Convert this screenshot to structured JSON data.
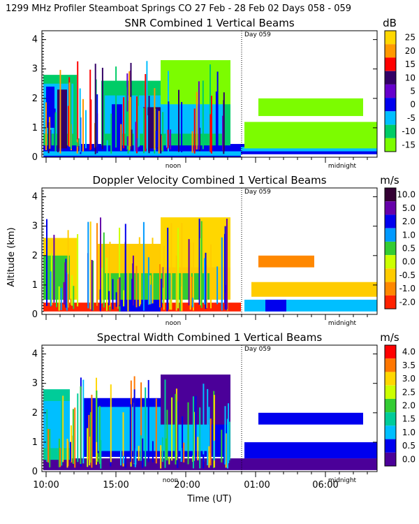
{
  "header": {
    "title": "1299 MHz Profiler   Steamboat Springs CO   27 Feb - 28 Feb 02 Days 058 - 059"
  },
  "colors": {
    "white": "#ffffff",
    "green": "#7cfc00",
    "cyan": "#00bfff",
    "blue": "#0000ee",
    "indigo": "#3a0099",
    "purple": "#4b0082",
    "red": "#ff0000",
    "orange": "#ff8c00",
    "yellow": "#ffd700",
    "darkgray": "#333333"
  },
  "chart_data": [
    {
      "type": "heatmap",
      "title": "SNR Combined 1 Vertical Beams",
      "unit": "dB",
      "day_marker": "Day 059",
      "ylim": [
        0,
        4.3
      ],
      "yticks": [
        "0",
        "1",
        "2",
        "3",
        "4"
      ],
      "x_markers": [
        "noon",
        "midnight"
      ],
      "colorbar": {
        "labels": [
          "25",
          "20",
          "15",
          "10",
          "5",
          "0",
          "-5",
          "-10",
          "-15"
        ],
        "colors": [
          "#ffd700",
          "#ff9900",
          "#ff0000",
          "#330066",
          "#6600cc",
          "#0000ee",
          "#00bfff",
          "#00cc66",
          "#7cfc00"
        ]
      }
    },
    {
      "type": "heatmap",
      "title": "Doppler Velocity Combined 1 Vertical Beams",
      "unit": "m/s",
      "day_marker": "Day 059",
      "ylabel": "Altitude (km)",
      "ylim": [
        0,
        4.3
      ],
      "yticks": [
        "0",
        "1",
        "2",
        "3",
        "4"
      ],
      "x_markers": [
        "noon",
        "midnight"
      ],
      "colorbar": {
        "labels": [
          "10.0",
          "5.0",
          "2.0",
          "1.0",
          "0.5",
          "0.0",
          "-0.5",
          "-1.0",
          "-2.0"
        ],
        "colors": [
          "#330033",
          "#6600aa",
          "#0000ee",
          "#0099ff",
          "#33cc33",
          "#ccff00",
          "#ffcc00",
          "#ff8800",
          "#ff2200"
        ]
      }
    },
    {
      "type": "heatmap",
      "title": "Spectral Width Combined 1 Vertical Beams",
      "unit": "m/s",
      "day_marker": "Day 059",
      "ylim": [
        0,
        4.3
      ],
      "yticks": [
        "0",
        "1",
        "2",
        "3",
        "4"
      ],
      "x_markers": [
        "noon",
        "midnight"
      ],
      "xlabel": "Time (UT)",
      "xticks": [
        "10:00",
        "15:00",
        "20:00",
        "01:00",
        "06:00"
      ],
      "colorbar": {
        "labels": [
          "4.0",
          "3.5",
          "3.0",
          "2.5",
          "2.0",
          "1.5",
          "1.0",
          "0.5",
          "0.0"
        ],
        "colors": [
          "#ff0000",
          "#ff7700",
          "#ffd700",
          "#ccff00",
          "#33cc33",
          "#00cc99",
          "#00bfff",
          "#0000ee",
          "#4b0099"
        ]
      }
    }
  ]
}
